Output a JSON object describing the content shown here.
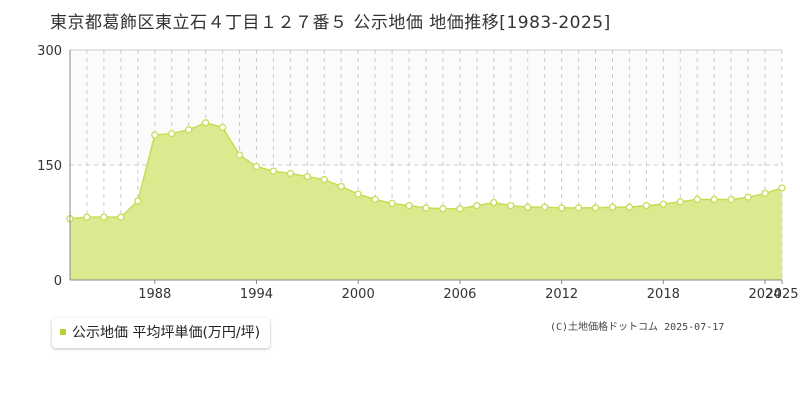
{
  "title": "東京都葛飾区東立石４丁目１２７番５ 公示地価 地価推移[1983-2025]",
  "legend_label": "公示地価 平均坪単価(万円/坪)",
  "copyright": "(C)土地価格ドットコム 2025-07-17",
  "colors": {
    "fill": "#dcea8f",
    "line": "#c4de55",
    "marker_stroke": "#c4de55",
    "grid_dashed": "#cccccc",
    "axis": "#888888",
    "legend_swatch": "#b5d334"
  },
  "chart_data": {
    "type": "area",
    "title": "東京都葛飾区東立石４丁目１２７番５ 公示地価 地価推移[1983-2025]",
    "xlabel": "",
    "ylabel": "",
    "ylim": [
      0,
      300
    ],
    "xlim": [
      1983,
      2025
    ],
    "y_ticks": [
      0,
      150,
      300
    ],
    "x_ticks": [
      1988,
      1994,
      2000,
      2006,
      2012,
      2018,
      2024,
      2025
    ],
    "grid": true,
    "series": [
      {
        "name": "公示地価 平均坪単価(万円/坪)",
        "x": [
          1983,
          1984,
          1985,
          1986,
          1987,
          1988,
          1989,
          1990,
          1991,
          1992,
          1993,
          1994,
          1995,
          1996,
          1997,
          1998,
          1999,
          2000,
          2001,
          2002,
          2003,
          2004,
          2005,
          2006,
          2007,
          2008,
          2009,
          2010,
          2011,
          2012,
          2013,
          2014,
          2015,
          2016,
          2017,
          2018,
          2019,
          2020,
          2021,
          2022,
          2023,
          2024,
          2025
        ],
        "values": [
          80,
          82,
          82,
          82,
          103,
          189,
          191,
          196,
          205,
          199,
          163,
          148,
          142,
          139,
          135,
          131,
          122,
          112,
          105,
          100,
          97,
          94,
          93,
          93,
          97,
          101,
          97,
          95,
          95,
          94,
          94,
          94,
          95,
          95,
          97,
          99,
          102,
          105,
          105,
          105,
          108,
          113,
          120
        ]
      }
    ]
  }
}
